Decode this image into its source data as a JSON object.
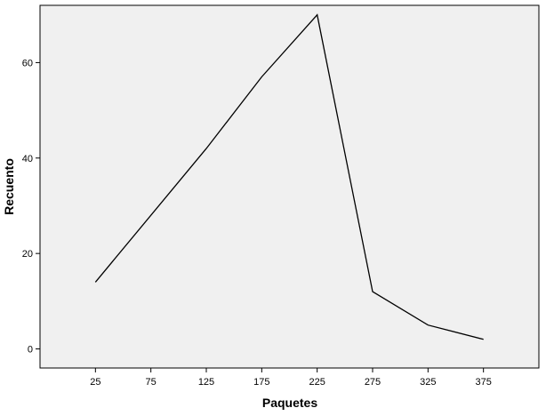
{
  "chart_data": {
    "type": "line",
    "title": "",
    "xlabel": "Paquetes",
    "ylabel": "Recuento",
    "x_ticks": [
      "25",
      "75",
      "125",
      "175",
      "225",
      "275",
      "325",
      "375"
    ],
    "y_ticks": [
      "0",
      "20",
      "40",
      "60"
    ],
    "xlim": [
      -25,
      425
    ],
    "ylim": [
      -4,
      72
    ],
    "grid": false,
    "series": [
      {
        "x": [
          25,
          125,
          175,
          225,
          275,
          325,
          375
        ],
        "y": [
          14,
          42,
          57,
          70,
          12,
          5,
          2
        ],
        "color": "#000000"
      }
    ],
    "colors": {
      "plot_background": "#f0f0f0",
      "line": "#000000",
      "frame": "#000000"
    }
  }
}
